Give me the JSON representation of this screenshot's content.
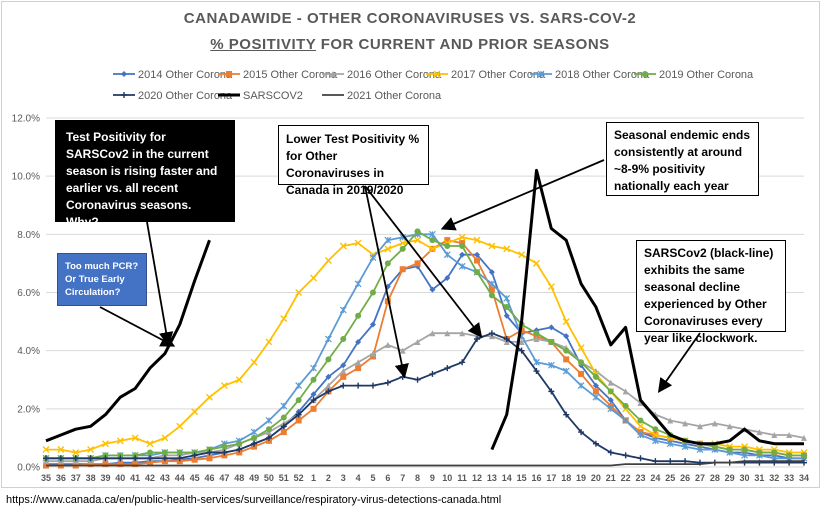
{
  "chart_data": {
    "type": "line",
    "title_line1": "CANADAWIDE - OTHER CORONAVIRUSES VS. SARS-COV-2",
    "title_line2_underlined": "% POSITIVITY",
    "title_line2_rest": " FOR CURRENT AND PRIOR SEASONS",
    "xlabel": "",
    "ylabel": "",
    "ylim": [
      0,
      12
    ],
    "y_ticks": [
      "0.0%",
      "2.0%",
      "4.0%",
      "6.0%",
      "8.0%",
      "10.0%",
      "12.0%"
    ],
    "categories": [
      "35",
      "36",
      "37",
      "38",
      "39",
      "40",
      "41",
      "42",
      "43",
      "44",
      "45",
      "46",
      "47",
      "48",
      "49",
      "50",
      "51",
      "52",
      "1",
      "2",
      "3",
      "4",
      "5",
      "6",
      "7",
      "8",
      "9",
      "10",
      "11",
      "12",
      "13",
      "14",
      "15",
      "16",
      "17",
      "18",
      "19",
      "20",
      "21",
      "22",
      "23",
      "24",
      "25",
      "26",
      "27",
      "28",
      "29",
      "30",
      "31",
      "32",
      "33",
      "34"
    ],
    "series": [
      {
        "name": "2014 Other Corona",
        "color": "#4472c4",
        "marker": "diamond",
        "values": [
          0.1,
          0.1,
          0.1,
          0.1,
          0.1,
          0.15,
          0.15,
          0.2,
          0.2,
          0.25,
          0.3,
          0.4,
          0.5,
          0.6,
          0.8,
          1.0,
          1.4,
          1.9,
          2.5,
          3.1,
          3.5,
          4.3,
          4.9,
          6.2,
          6.8,
          6.9,
          6.1,
          6.5,
          7.3,
          7.3,
          6.7,
          5.2,
          4.6,
          4.7,
          4.8,
          4.5,
          3.5,
          2.8,
          2.3,
          1.6,
          1.2,
          1.0,
          0.9,
          0.8,
          0.7,
          0.6,
          0.5,
          0.5,
          0.4,
          0.4,
          0.3,
          0.3
        ]
      },
      {
        "name": "2015 Other Corona",
        "color": "#ed7d31",
        "marker": "square",
        "values": [
          0.05,
          0.05,
          0.05,
          0.1,
          0.1,
          0.1,
          0.1,
          0.15,
          0.2,
          0.2,
          0.25,
          0.3,
          0.4,
          0.5,
          0.7,
          0.9,
          1.2,
          1.6,
          2.0,
          2.6,
          3.1,
          3.4,
          3.8,
          5.7,
          6.8,
          7.0,
          7.5,
          7.8,
          7.7,
          7.1,
          6.1,
          4.4,
          4.7,
          4.5,
          4.3,
          3.7,
          3.2,
          2.6,
          2.1,
          1.6,
          1.2,
          1.1,
          1.0,
          0.9,
          0.8,
          0.7,
          0.6,
          0.6,
          0.5,
          0.5,
          0.4,
          0.4
        ]
      },
      {
        "name": "2016 Other Corona",
        "color": "#a5a5a5",
        "marker": "triangle",
        "values": [
          0.2,
          0.2,
          0.2,
          0.2,
          0.3,
          0.3,
          0.3,
          0.3,
          0.4,
          0.4,
          0.5,
          0.5,
          0.6,
          0.8,
          1.0,
          1.2,
          1.5,
          1.8,
          2.3,
          2.8,
          3.3,
          3.6,
          3.9,
          4.2,
          4.0,
          4.3,
          4.6,
          4.6,
          4.6,
          4.5,
          4.5,
          4.3,
          4.3,
          4.4,
          4.3,
          4.1,
          3.6,
          3.3,
          2.9,
          2.6,
          2.2,
          1.8,
          1.6,
          1.5,
          1.4,
          1.5,
          1.4,
          1.3,
          1.2,
          1.1,
          1.1,
          1.0
        ]
      },
      {
        "name": "2017 Other Corona",
        "color": "#ffc000",
        "marker": "x",
        "values": [
          0.6,
          0.6,
          0.5,
          0.6,
          0.8,
          0.9,
          1.0,
          0.8,
          1.0,
          1.4,
          1.9,
          2.4,
          2.8,
          3.0,
          3.6,
          4.3,
          5.1,
          6.0,
          6.5,
          7.1,
          7.6,
          7.7,
          7.3,
          7.5,
          7.7,
          7.8,
          7.5,
          7.7,
          7.9,
          7.8,
          7.6,
          7.5,
          7.3,
          7.0,
          6.2,
          5.0,
          4.1,
          3.2,
          2.6,
          2.0,
          1.4,
          1.1,
          1.0,
          0.9,
          0.8,
          0.8,
          0.7,
          0.7,
          0.6,
          0.6,
          0.5,
          0.5
        ]
      },
      {
        "name": "2018 Other Corona",
        "color": "#5b9bd5",
        "marker": "asterisk",
        "values": [
          0.3,
          0.3,
          0.3,
          0.3,
          0.4,
          0.4,
          0.4,
          0.4,
          0.5,
          0.5,
          0.5,
          0.6,
          0.8,
          0.9,
          1.2,
          1.6,
          2.1,
          2.8,
          3.4,
          4.4,
          5.4,
          6.3,
          7.2,
          7.8,
          7.9,
          8.0,
          8.0,
          7.3,
          6.9,
          6.7,
          6.3,
          5.8,
          4.5,
          3.6,
          3.5,
          3.3,
          2.8,
          2.4,
          2.0,
          1.6,
          1.1,
          0.9,
          0.8,
          0.7,
          0.6,
          0.6,
          0.5,
          0.4,
          0.4,
          0.3,
          0.3,
          0.3
        ]
      },
      {
        "name": "2019 Other Corona",
        "color": "#70ad47",
        "marker": "circle",
        "values": [
          0.3,
          0.3,
          0.3,
          0.3,
          0.4,
          0.4,
          0.4,
          0.5,
          0.5,
          0.5,
          0.5,
          0.6,
          0.7,
          0.8,
          1.0,
          1.3,
          1.7,
          2.3,
          3.0,
          3.7,
          4.4,
          5.2,
          6.0,
          7.0,
          7.5,
          8.1,
          7.8,
          7.6,
          7.6,
          6.7,
          5.9,
          5.5,
          4.9,
          4.6,
          4.3,
          4.0,
          3.6,
          3.1,
          2.6,
          2.1,
          1.6,
          1.3,
          1.1,
          0.9,
          0.8,
          0.7,
          0.6,
          0.6,
          0.5,
          0.5,
          0.4,
          0.4
        ]
      },
      {
        "name": "2020 Other Corona",
        "color": "#1f3864",
        "marker": "plus",
        "values": [
          0.3,
          0.3,
          0.3,
          0.3,
          0.3,
          0.3,
          0.3,
          0.3,
          0.3,
          0.3,
          0.4,
          0.5,
          0.5,
          0.6,
          0.8,
          1.0,
          1.4,
          1.8,
          2.3,
          2.6,
          2.8,
          2.8,
          2.8,
          2.9,
          3.1,
          3.0,
          3.2,
          3.4,
          3.6,
          4.4,
          4.6,
          4.4,
          4.0,
          3.3,
          2.6,
          1.8,
          1.2,
          0.8,
          0.5,
          0.4,
          0.3,
          0.2,
          0.2,
          0.2,
          0.15,
          0.15,
          0.15,
          0.15,
          0.15,
          0.15,
          0.15,
          0.15
        ]
      },
      {
        "name": "SARSCOV2",
        "color": "#000000",
        "marker": "none",
        "thick": true,
        "values": [
          null,
          null,
          null,
          null,
          null,
          null,
          null,
          null,
          null,
          null,
          null,
          null,
          null,
          null,
          null,
          null,
          null,
          null,
          null,
          null,
          null,
          null,
          null,
          null,
          null,
          null,
          null,
          null,
          null,
          null,
          0.6,
          1.8,
          5.0,
          10.2,
          8.2,
          7.8,
          6.3,
          5.5,
          4.2,
          4.8,
          2.3,
          1.7,
          1.1,
          0.9,
          0.8,
          0.8,
          0.9,
          1.3,
          0.9,
          0.8,
          0.8,
          0.8
        ]
      },
      {
        "name": "2021 Other Corona",
        "color": "#404040",
        "marker": "none",
        "values": [
          0.05,
          0.05,
          0.05,
          0.05,
          0.05,
          0.05,
          0.05,
          0.05,
          0.05,
          0.05,
          0.05,
          0.05,
          0.05,
          0.05,
          0.05,
          0.05,
          0.05,
          0.05,
          0.05,
          0.05,
          0.05,
          0.05,
          0.05,
          0.05,
          0.05,
          0.05,
          0.05,
          0.05,
          0.05,
          0.05,
          0.05,
          0.05,
          0.05,
          0.05,
          0.05,
          0.05,
          0.05,
          0.05,
          0.05,
          0.1,
          0.1,
          0.1,
          0.1,
          0.1,
          0.1,
          0.15,
          0.15,
          0.2,
          0.2,
          0.2,
          0.2,
          0.2
        ]
      },
      {
        "name": "SARSCOV2 current season",
        "color": "#000000",
        "marker": "none",
        "thick": true,
        "legend": false,
        "values": [
          0.9,
          1.1,
          1.3,
          1.4,
          1.8,
          2.4,
          2.7,
          3.4,
          3.9,
          4.9,
          6.4,
          7.8,
          null,
          null,
          null,
          null,
          null,
          null,
          null,
          null,
          null,
          null,
          null,
          null,
          null,
          null,
          null,
          null,
          null,
          null,
          null,
          null,
          null,
          null,
          null,
          null,
          null,
          null,
          null,
          null,
          null,
          null,
          null,
          null,
          null,
          null,
          null,
          null,
          null,
          null,
          null,
          null
        ]
      }
    ],
    "annotations": {
      "sars_box": "Test Positivity for SARSCov2 in the current season is rising faster and earlier vs. all recent Coronavirus seasons. Why?",
      "pcr_box": "Too much PCR? Or True Early Circulation?",
      "lower_box": "Lower Test Positivity % for Other Coronaviruses in Canada in 2019/2020",
      "endemic_box": "Seasonal endemic ends consistently at around ~8-9% positivity nationally each year",
      "decline_box": "SARSCov2 (black-line) exhibits the same seasonal decline experienced by Other Coronaviruses every year like clockwork."
    },
    "legend_position": "top"
  },
  "source_url": "https://www.canada.ca/en/public-health-services/surveillance/respiratory-virus-detections-canada.html"
}
